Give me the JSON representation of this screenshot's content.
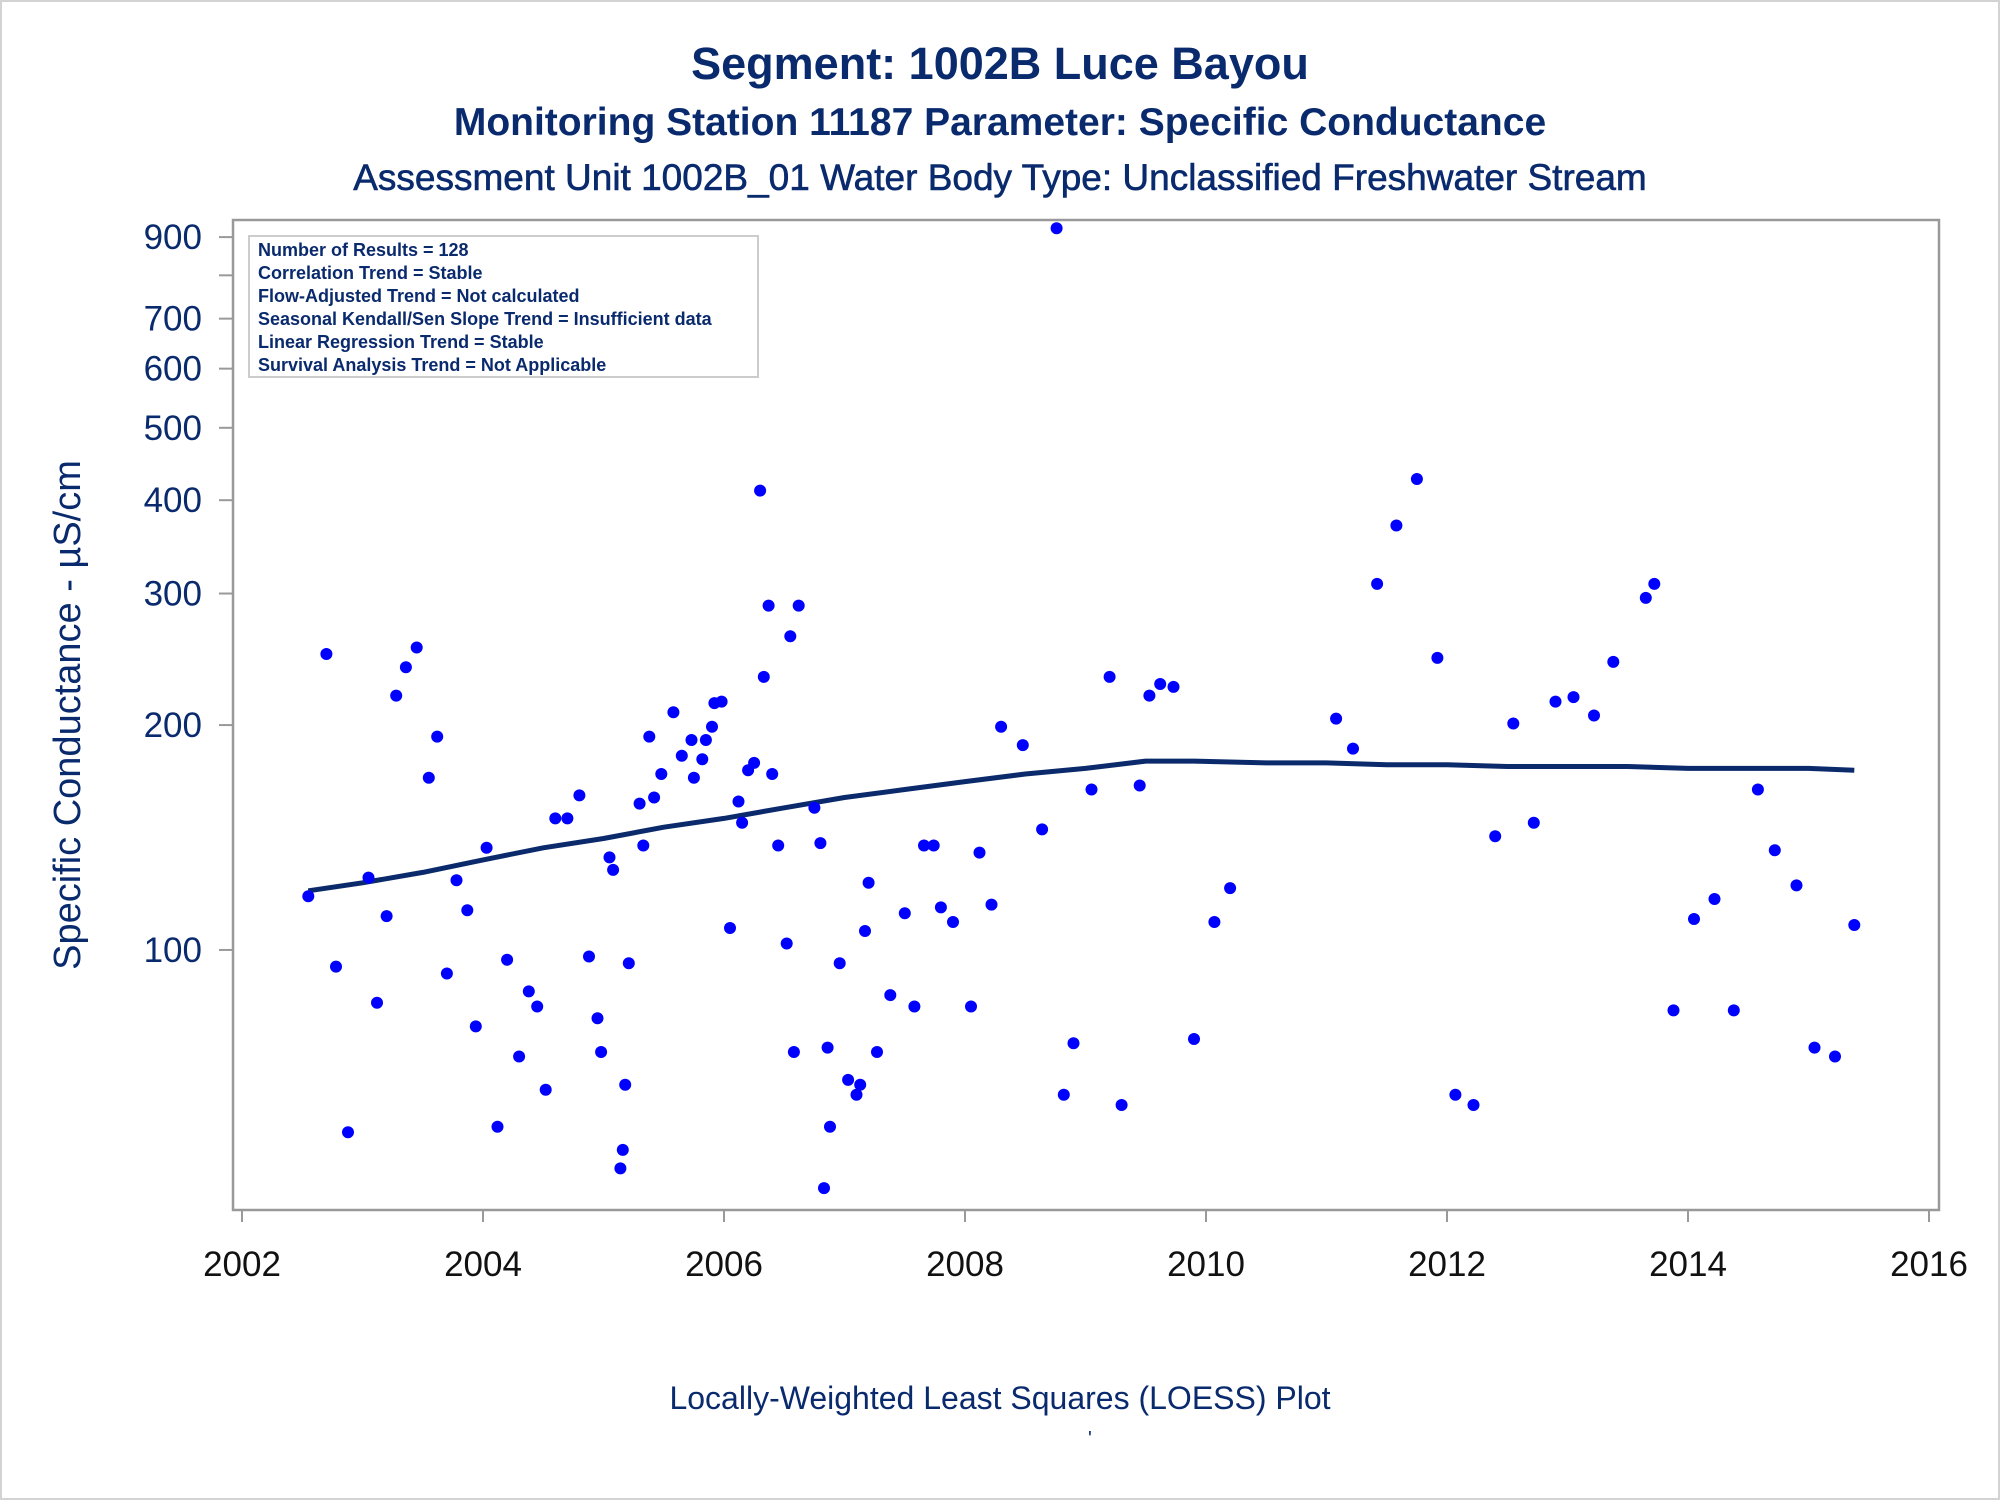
{
  "titles": {
    "line1": "Segment: 1002B  Luce Bayou",
    "line2": "Monitoring Station 11187 Parameter: Specific Conductance",
    "line3": "Assessment Unit 1002B_01   Water Body Type: Unclassified Freshwater Stream"
  },
  "footnote": "Locally-Weighted Least Squares (LOESS) Plot",
  "footnote_mark": "'",
  "colors": {
    "text": "#0a2a6e",
    "points": "#0000ff",
    "loess": "#0b2a6b",
    "axis": "#999999"
  },
  "chart_data": {
    "type": "scatter",
    "ylabel": "Specific Conductance -  µS/cm",
    "xlabel": "",
    "yscale": "log",
    "xlim": [
      2002,
      2016
    ],
    "ylim": [
      45,
      940
    ],
    "x_ticks": [
      2002,
      2004,
      2006,
      2008,
      2010,
      2012,
      2014,
      2016
    ],
    "x_tick_labels": [
      "2002",
      "2004",
      "2006",
      "2008",
      "2010",
      "2012",
      "2014",
      "2016"
    ],
    "y_ticks": [
      100,
      200,
      300,
      400,
      500,
      600,
      700,
      900
    ],
    "y_tick_labels": [
      "100",
      "200",
      "300",
      "400",
      "500",
      "600",
      "700",
      "900"
    ],
    "y_minor_ticks": [
      800
    ],
    "grid": false,
    "legend": "none",
    "stats_box": {
      "placement": "top-left",
      "lines": [
        "Number of Results = 128",
        "Correlation Trend = Stable",
        "Flow-Adjusted Trend = Not calculated",
        "Seasonal Kendall/Sen Slope Trend = Insufficient data",
        "Linear Regression Trend = Stable",
        "Survival Analysis Trend = Not Applicable"
      ]
    },
    "points": [
      [
        2002.55,
        118
      ],
      [
        2002.7,
        249
      ],
      [
        2002.78,
        95
      ],
      [
        2002.88,
        57
      ],
      [
        2003.05,
        125
      ],
      [
        2003.12,
        85
      ],
      [
        2003.2,
        111
      ],
      [
        2003.28,
        219
      ],
      [
        2003.36,
        239
      ],
      [
        2003.45,
        254
      ],
      [
        2003.55,
        170
      ],
      [
        2003.62,
        193
      ],
      [
        2003.7,
        93
      ],
      [
        2003.78,
        124
      ],
      [
        2003.87,
        113
      ],
      [
        2003.94,
        79
      ],
      [
        2004.03,
        137
      ],
      [
        2004.12,
        58
      ],
      [
        2004.2,
        97
      ],
      [
        2004.3,
        72
      ],
      [
        2004.38,
        88
      ],
      [
        2004.45,
        84
      ],
      [
        2004.52,
        65
      ],
      [
        2004.6,
        150
      ],
      [
        2004.7,
        150
      ],
      [
        2004.8,
        161
      ],
      [
        2004.88,
        98
      ],
      [
        2004.95,
        81
      ],
      [
        2004.98,
        73
      ],
      [
        2005.05,
        133
      ],
      [
        2005.08,
        128
      ],
      [
        2005.14,
        51
      ],
      [
        2005.16,
        54
      ],
      [
        2005.18,
        66
      ],
      [
        2005.21,
        96
      ],
      [
        2005.3,
        157
      ],
      [
        2005.33,
        138
      ],
      [
        2005.38,
        193
      ],
      [
        2005.42,
        160
      ],
      [
        2005.48,
        172
      ],
      [
        2005.58,
        208
      ],
      [
        2005.65,
        182
      ],
      [
        2005.73,
        191
      ],
      [
        2005.75,
        170
      ],
      [
        2005.82,
        180
      ],
      [
        2005.85,
        191
      ],
      [
        2005.9,
        199
      ],
      [
        2005.92,
        214
      ],
      [
        2005.98,
        215
      ],
      [
        2006.05,
        107
      ],
      [
        2006.12,
        158
      ],
      [
        2006.15,
        148
      ],
      [
        2006.2,
        174
      ],
      [
        2006.25,
        178
      ],
      [
        2006.3,
        412
      ],
      [
        2006.33,
        232
      ],
      [
        2006.37,
        289
      ],
      [
        2006.4,
        172
      ],
      [
        2006.45,
        138
      ],
      [
        2006.52,
        102
      ],
      [
        2006.55,
        263
      ],
      [
        2006.58,
        73
      ],
      [
        2006.62,
        289
      ],
      [
        2006.75,
        155
      ],
      [
        2006.8,
        139
      ],
      [
        2006.83,
        48
      ],
      [
        2006.86,
        74
      ],
      [
        2006.88,
        58
      ],
      [
        2006.96,
        96
      ],
      [
        2007.03,
        67
      ],
      [
        2007.1,
        64
      ],
      [
        2007.13,
        66
      ],
      [
        2007.17,
        106
      ],
      [
        2007.2,
        123
      ],
      [
        2007.27,
        73
      ],
      [
        2007.38,
        87
      ],
      [
        2007.5,
        112
      ],
      [
        2007.58,
        84
      ],
      [
        2007.66,
        138
      ],
      [
        2007.74,
        138
      ],
      [
        2007.8,
        114
      ],
      [
        2007.9,
        109
      ],
      [
        2008.05,
        84
      ],
      [
        2008.12,
        135
      ],
      [
        2008.22,
        115
      ],
      [
        2008.3,
        199
      ],
      [
        2008.48,
        188
      ],
      [
        2008.64,
        145
      ],
      [
        2008.76,
        925
      ],
      [
        2008.82,
        64
      ],
      [
        2008.9,
        75
      ],
      [
        2009.05,
        164
      ],
      [
        2009.2,
        232
      ],
      [
        2009.3,
        62
      ],
      [
        2009.45,
        166
      ],
      [
        2009.53,
        219
      ],
      [
        2009.62,
        227
      ],
      [
        2009.73,
        225
      ],
      [
        2009.9,
        76
      ],
      [
        2010.07,
        109
      ],
      [
        2010.2,
        121
      ],
      [
        2011.08,
        204
      ],
      [
        2011.22,
        186
      ],
      [
        2011.42,
        309
      ],
      [
        2011.58,
        370
      ],
      [
        2011.75,
        427
      ],
      [
        2011.92,
        246
      ],
      [
        2012.07,
        64
      ],
      [
        2012.22,
        62
      ],
      [
        2012.4,
        142
      ],
      [
        2012.55,
        201
      ],
      [
        2012.72,
        148
      ],
      [
        2012.9,
        215
      ],
      [
        2013.05,
        218
      ],
      [
        2013.22,
        206
      ],
      [
        2013.38,
        243
      ],
      [
        2013.65,
        296
      ],
      [
        2013.72,
        309
      ],
      [
        2013.88,
        83
      ],
      [
        2014.05,
        110
      ],
      [
        2014.22,
        117
      ],
      [
        2014.38,
        83
      ],
      [
        2014.58,
        164
      ],
      [
        2014.72,
        136
      ],
      [
        2014.9,
        122
      ],
      [
        2015.05,
        74
      ],
      [
        2015.22,
        72
      ],
      [
        2015.38,
        108
      ]
    ],
    "loess": [
      [
        2002.55,
        120
      ],
      [
        2003.0,
        123
      ],
      [
        2003.5,
        127
      ],
      [
        2004.0,
        132
      ],
      [
        2004.5,
        137
      ],
      [
        2005.0,
        141
      ],
      [
        2005.5,
        146
      ],
      [
        2006.0,
        150
      ],
      [
        2006.5,
        155
      ],
      [
        2007.0,
        160
      ],
      [
        2007.5,
        164
      ],
      [
        2008.0,
        168
      ],
      [
        2008.5,
        172
      ],
      [
        2009.0,
        175
      ],
      [
        2009.5,
        179
      ],
      [
        2009.9,
        179
      ],
      [
        2010.5,
        178
      ],
      [
        2011.0,
        178
      ],
      [
        2011.5,
        177
      ],
      [
        2012.0,
        177
      ],
      [
        2012.5,
        176
      ],
      [
        2013.0,
        176
      ],
      [
        2013.5,
        176
      ],
      [
        2014.0,
        175
      ],
      [
        2014.5,
        175
      ],
      [
        2015.0,
        175
      ],
      [
        2015.38,
        174
      ]
    ]
  }
}
